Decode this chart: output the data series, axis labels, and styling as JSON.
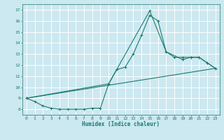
{
  "xlabel": "Humidex (Indice chaleur)",
  "bg_color": "#cce8f0",
  "grid_color": "#ffffff",
  "line_color": "#1a7a6e",
  "xlim": [
    -0.5,
    23.5
  ],
  "ylim": [
    7.5,
    17.5
  ],
  "xticks": [
    0,
    1,
    2,
    3,
    4,
    5,
    6,
    7,
    8,
    9,
    10,
    11,
    12,
    13,
    14,
    15,
    16,
    17,
    18,
    19,
    20,
    21,
    22,
    23
  ],
  "yticks": [
    8,
    9,
    10,
    11,
    12,
    13,
    14,
    15,
    16,
    17
  ],
  "line1_x": [
    0,
    1,
    2,
    3,
    4,
    5,
    6,
    7,
    8,
    9,
    10,
    11,
    12,
    13,
    14,
    15,
    16,
    17,
    18,
    19,
    20,
    21,
    22,
    23
  ],
  "line1_y": [
    9.0,
    8.7,
    8.3,
    8.1,
    8.0,
    8.0,
    8.0,
    8.0,
    8.1,
    8.1,
    10.3,
    11.6,
    11.8,
    13.0,
    14.7,
    16.5,
    16.0,
    13.2,
    12.7,
    12.7,
    12.7,
    12.7,
    12.2,
    11.7
  ],
  "line2_x": [
    0,
    10,
    15,
    17,
    19,
    20,
    21,
    22,
    23
  ],
  "line2_y": [
    9.0,
    10.3,
    16.9,
    13.2,
    12.5,
    12.7,
    12.7,
    12.2,
    11.7
  ],
  "line3_x": [
    0,
    23
  ],
  "line3_y": [
    9.0,
    11.7
  ]
}
